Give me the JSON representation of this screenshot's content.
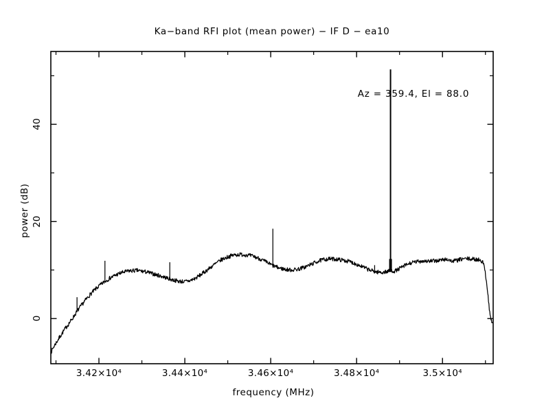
{
  "chart_data": {
    "type": "line",
    "title": "Ka−band RFI plot (mean power) − IF D − ea10",
    "annotation": "Az = 359.4, El = 88.0",
    "xlabel": "frequency (MHz)",
    "ylabel": "power (dB)",
    "xlim": [
      34088,
      35118
    ],
    "ylim": [
      -9.3,
      55
    ],
    "grid": false,
    "line_color": "#000000",
    "background_color": "#ffffff",
    "x_ticks": [
      {
        "value": 34200,
        "label": "3.42×10⁴"
      },
      {
        "value": 34400,
        "label": "3.44×10⁴"
      },
      {
        "value": 34600,
        "label": "3.46×10⁴"
      },
      {
        "value": 34800,
        "label": "3.48×10⁴"
      },
      {
        "value": 35000,
        "label": "3.5×10⁴"
      }
    ],
    "x_minor_ticks": [
      34100,
      34300,
      34500,
      34700,
      34900,
      35100
    ],
    "y_ticks": [
      {
        "value": 0,
        "label": "0"
      },
      {
        "value": 20,
        "label": "20"
      },
      {
        "value": 40,
        "label": "40"
      }
    ],
    "y_minor_ticks": [
      10,
      30,
      50
    ],
    "noise_db_pp": 0.42,
    "profile": [
      [
        34088,
        -7.0
      ],
      [
        34096,
        -5.6
      ],
      [
        34108,
        -3.9
      ],
      [
        34122,
        -2.0
      ],
      [
        34136,
        -0.3
      ],
      [
        34150,
        1.6
      ],
      [
        34165,
        3.4
      ],
      [
        34180,
        5.0
      ],
      [
        34195,
        6.3
      ],
      [
        34210,
        7.4
      ],
      [
        34225,
        8.3
      ],
      [
        34240,
        9.0
      ],
      [
        34255,
        9.5
      ],
      [
        34270,
        9.8
      ],
      [
        34290,
        9.9
      ],
      [
        34310,
        9.6
      ],
      [
        34330,
        9.1
      ],
      [
        34350,
        8.6
      ],
      [
        34370,
        8.0
      ],
      [
        34385,
        7.7
      ],
      [
        34400,
        7.6
      ],
      [
        34412,
        7.8
      ],
      [
        34425,
        8.3
      ],
      [
        34440,
        9.2
      ],
      [
        34455,
        10.2
      ],
      [
        34470,
        11.2
      ],
      [
        34485,
        12.1
      ],
      [
        34500,
        12.7
      ],
      [
        34515,
        13.1
      ],
      [
        34530,
        13.2
      ],
      [
        34545,
        13.1
      ],
      [
        34560,
        12.8
      ],
      [
        34575,
        12.3
      ],
      [
        34590,
        11.6
      ],
      [
        34605,
        10.9
      ],
      [
        34620,
        10.4
      ],
      [
        34635,
        10.1
      ],
      [
        34650,
        10.0
      ],
      [
        34665,
        10.2
      ],
      [
        34680,
        10.6
      ],
      [
        34695,
        11.2
      ],
      [
        34710,
        11.8
      ],
      [
        34725,
        12.2
      ],
      [
        34740,
        12.3
      ],
      [
        34755,
        12.2
      ],
      [
        34770,
        12.0
      ],
      [
        34785,
        11.7
      ],
      [
        34800,
        11.2
      ],
      [
        34815,
        10.6
      ],
      [
        34830,
        10.0
      ],
      [
        34845,
        9.6
      ],
      [
        34860,
        9.5
      ],
      [
        34872,
        9.7
      ],
      [
        34882,
        9.8
      ],
      [
        34890,
        9.8
      ],
      [
        34900,
        10.3
      ],
      [
        34912,
        10.9
      ],
      [
        34925,
        11.4
      ],
      [
        34940,
        11.7
      ],
      [
        34955,
        11.9
      ],
      [
        34970,
        11.8
      ],
      [
        34985,
        11.9
      ],
      [
        35000,
        12.1
      ],
      [
        35012,
        12.2
      ],
      [
        35022,
        11.8
      ],
      [
        35035,
        12.0
      ],
      [
        35048,
        12.3
      ],
      [
        35060,
        12.3
      ],
      [
        35075,
        12.2
      ],
      [
        35088,
        12.1
      ],
      [
        35094,
        11.6
      ],
      [
        35099,
        10.0
      ],
      [
        35104,
        6.5
      ],
      [
        35109,
        2.0
      ],
      [
        35113,
        -0.4
      ],
      [
        35117,
        -0.9
      ]
    ],
    "spikes": [
      {
        "freq": 34149,
        "peak": 4.4,
        "major": false
      },
      {
        "freq": 34214,
        "peak": 11.9,
        "major": false
      },
      {
        "freq": 34365,
        "peak": 11.6,
        "major": false
      },
      {
        "freq": 34605,
        "peak": 18.5,
        "major": false
      },
      {
        "freq": 34842,
        "peak": 11.0,
        "major": false
      },
      {
        "freq": 34879,
        "peak": 51.3,
        "major": true
      }
    ]
  }
}
